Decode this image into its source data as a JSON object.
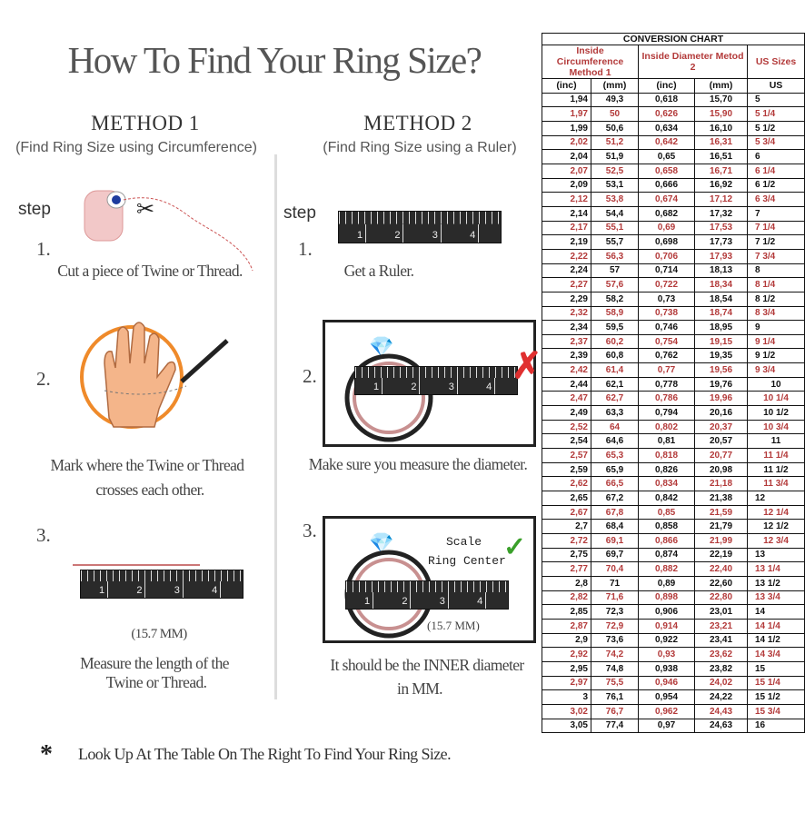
{
  "title": "How To Find Your Ring Size?",
  "method1": {
    "heading": "METHOD 1",
    "subtitle": "(Find Ring Size using Circumference)",
    "step_label": "step",
    "steps": [
      {
        "n": "1.",
        "text": [
          "Cut a piece of  Twine or Thread."
        ]
      },
      {
        "n": "2.",
        "text": [
          "Mark where the Twine or Thread",
          "crosses each other."
        ]
      },
      {
        "n": "3.",
        "text": [
          "Measure the length of the",
          "Twine or Thread."
        ],
        "measure": "(15.7 MM)"
      }
    ]
  },
  "method2": {
    "heading": "METHOD 2",
    "subtitle": "(Find Ring Size using a Ruler)",
    "step_label": "step",
    "steps": [
      {
        "n": "1.",
        "text": [
          "Get a Ruler."
        ]
      },
      {
        "n": "2.",
        "text": [
          "Make sure you measure the diameter."
        ]
      },
      {
        "n": "3.",
        "text": [
          "It should be the INNER diameter",
          "in MM."
        ],
        "scale": "Scale",
        "ring_center": "Ring Center",
        "measure": "(15.7 MM)"
      }
    ]
  },
  "ruler_labels": [
    "1",
    "2",
    "3",
    "4"
  ],
  "footer": {
    "bullet": "*",
    "text": "Look Up At The Table On The Right To Find Your Ring Size."
  },
  "colors": {
    "red": "#b33a3a",
    "check": "#3aa02a",
    "cross": "#e03030"
  },
  "chart_data": {
    "type": "table",
    "title": "CONVERSION CHART",
    "group_headers": [
      "Inside Circumference Method 1",
      "Inside Diameter Metod 2",
      "US Sizes"
    ],
    "columns": [
      "(inc)",
      "(mm)",
      "(inc)",
      "(mm)",
      "US"
    ],
    "rows": [
      [
        "1,94",
        "49,3",
        "0,618",
        "15,70",
        "5"
      ],
      [
        "1,97",
        "50",
        "0,626",
        "15,90",
        "5 1/4"
      ],
      [
        "1,99",
        "50,6",
        "0,634",
        "16,10",
        "5 1/2"
      ],
      [
        "2,02",
        "51,2",
        "0,642",
        "16,31",
        "5 3/4"
      ],
      [
        "2,04",
        "51,9",
        "0,65",
        "16,51",
        "6"
      ],
      [
        "2,07",
        "52,5",
        "0,658",
        "16,71",
        "6 1/4"
      ],
      [
        "2,09",
        "53,1",
        "0,666",
        "16,92",
        "6 1/2"
      ],
      [
        "2,12",
        "53,8",
        "0,674",
        "17,12",
        "6 3/4"
      ],
      [
        "2,14",
        "54,4",
        "0,682",
        "17,32",
        "7"
      ],
      [
        "2,17",
        "55,1",
        "0,69",
        "17,53",
        "7 1/4"
      ],
      [
        "2,19",
        "55,7",
        "0,698",
        "17,73",
        "7 1/2"
      ],
      [
        "2,22",
        "56,3",
        "0,706",
        "17,93",
        "7 3/4"
      ],
      [
        "2,24",
        "57",
        "0,714",
        "18,13",
        "8"
      ],
      [
        "2,27",
        "57,6",
        "0,722",
        "18,34",
        "8 1/4"
      ],
      [
        "2,29",
        "58,2",
        "0,73",
        "18,54",
        "8 1/2"
      ],
      [
        "2,32",
        "58,9",
        "0,738",
        "18,74",
        "8 3/4"
      ],
      [
        "2,34",
        "59,5",
        "0,746",
        "18,95",
        "9"
      ],
      [
        "2,37",
        "60,2",
        "0,754",
        "19,15",
        "9 1/4"
      ],
      [
        "2,39",
        "60,8",
        "0,762",
        "19,35",
        "9 1/2"
      ],
      [
        "2,42",
        "61,4",
        "0,77",
        "19,56",
        "9 3/4"
      ],
      [
        "2,44",
        "62,1",
        "0,778",
        "19,76",
        "10"
      ],
      [
        "2,47",
        "62,7",
        "0,786",
        "19,96",
        "10 1/4"
      ],
      [
        "2,49",
        "63,3",
        "0,794",
        "20,16",
        "10 1/2"
      ],
      [
        "2,52",
        "64",
        "0,802",
        "20,37",
        "10 3/4"
      ],
      [
        "2,54",
        "64,6",
        "0,81",
        "20,57",
        "11"
      ],
      [
        "2,57",
        "65,3",
        "0,818",
        "20,77",
        "11 1/4"
      ],
      [
        "2,59",
        "65,9",
        "0,826",
        "20,98",
        "11 1/2"
      ],
      [
        "2,62",
        "66,5",
        "0,834",
        "21,18",
        "11 3/4"
      ],
      [
        "2,65",
        "67,2",
        "0,842",
        "21,38",
        "12"
      ],
      [
        "2,67",
        "67,8",
        "0,85",
        "21,59",
        "12 1/4"
      ],
      [
        "2,7",
        "68,4",
        "0,858",
        "21,79",
        "12 1/2"
      ],
      [
        "2,72",
        "69,1",
        "0,866",
        "21,99",
        "12 3/4"
      ],
      [
        "2,75",
        "69,7",
        "0,874",
        "22,19",
        "13"
      ],
      [
        "2,77",
        "70,4",
        "0,882",
        "22,40",
        "13 1/4"
      ],
      [
        "2,8",
        "71",
        "0,89",
        "22,60",
        "13 1/2"
      ],
      [
        "2,82",
        "71,6",
        "0,898",
        "22,80",
        "13 3/4"
      ],
      [
        "2,85",
        "72,3",
        "0,906",
        "23,01",
        "14"
      ],
      [
        "2,87",
        "72,9",
        "0,914",
        "23,21",
        "14 1/4"
      ],
      [
        "2,9",
        "73,6",
        "0,922",
        "23,41",
        "14 1/2"
      ],
      [
        "2,92",
        "74,2",
        "0,93",
        "23,62",
        "14 3/4"
      ],
      [
        "2,95",
        "74,8",
        "0,938",
        "23,82",
        "15"
      ],
      [
        "2,97",
        "75,5",
        "0,946",
        "24,02",
        "15 1/4"
      ],
      [
        "3",
        "76,1",
        "0,954",
        "24,22",
        "15 1/2"
      ],
      [
        "3,02",
        "76,7",
        "0,962",
        "24,43",
        "15 3/4"
      ],
      [
        "3,05",
        "77,4",
        "0,97",
        "24,63",
        "16"
      ]
    ]
  }
}
